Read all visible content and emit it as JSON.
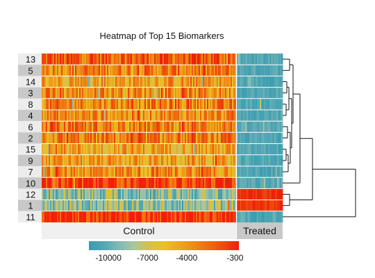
{
  "chart_data": {
    "type": "heatmap",
    "title": "Heatmap of Top 15 Biomarkers",
    "row_labels": [
      "13",
      "5",
      "14",
      "3",
      "8",
      "4",
      "6",
      "2",
      "15",
      "9",
      "7",
      "10",
      "12",
      "1",
      "11"
    ],
    "groups": [
      {
        "name": "Control",
        "n_samples": 140
      },
      {
        "name": "Treated",
        "n_samples": 32
      }
    ],
    "value_range": [
      -11500,
      0
    ],
    "colorbar": {
      "tick_labels": [
        "-10000",
        "-7000",
        "-4000",
        "-300"
      ],
      "tick_values": [
        -10000,
        -7000,
        -4000,
        -300
      ],
      "colors": [
        "#3a9bb0",
        "#52a7b5",
        "#80b9b3",
        "#a8c7a0",
        "#d7c04a",
        "#e8c226",
        "#eca81e",
        "#ee8a14",
        "#ee6c10",
        "#ee4a0c",
        "#ee2008"
      ]
    },
    "row_levels": {
      "13": {
        "control": -1800,
        "treated": -10500
      },
      "5": {
        "control": -3000,
        "treated": -10500
      },
      "14": {
        "control": -4200,
        "treated": -10500
      },
      "3": {
        "control": -3500,
        "treated": -10500
      },
      "8": {
        "control": -3200,
        "treated": -10500
      },
      "4": {
        "control": -3600,
        "treated": -10500
      },
      "6": {
        "control": -3000,
        "treated": -10500
      },
      "2": {
        "control": -3200,
        "treated": -10500
      },
      "15": {
        "control": -4500,
        "treated": -10500
      },
      "9": {
        "control": -4600,
        "treated": -10500
      },
      "7": {
        "control": -3400,
        "treated": -10500
      },
      "10": {
        "control": -800,
        "treated": -10500
      },
      "12": {
        "control": -8800,
        "treated": -400
      },
      "1": {
        "control": -8500,
        "treated": -600
      },
      "11": {
        "control": -250,
        "treated": -10500
      }
    },
    "dendrogram": "hierarchical clustering of rows (row-side tree, right)",
    "legend_position": "bottom"
  }
}
